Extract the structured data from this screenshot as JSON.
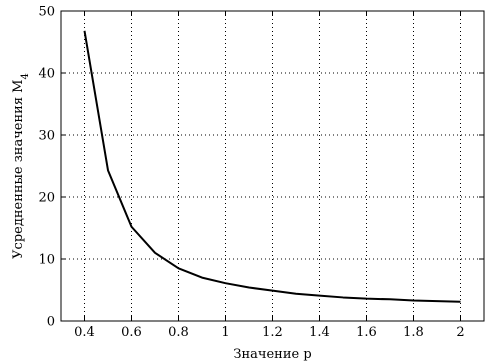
{
  "chart_data": {
    "type": "line",
    "title": "",
    "xlabel": "Значение p",
    "ylabel": "Усредненные значения M",
    "ylabel_subscript": "4",
    "xlim": [
      0.3,
      2.1
    ],
    "ylim": [
      0,
      50
    ],
    "x_ticks": [
      0.4,
      0.6,
      0.8,
      1,
      1.2,
      1.4,
      1.6,
      1.8,
      2
    ],
    "x_tick_labels": [
      "0.4",
      "0.6",
      "0.8",
      "1",
      "1.2",
      "1.4",
      "1.6",
      "1.8",
      "2"
    ],
    "y_ticks": [
      0,
      10,
      20,
      30,
      40,
      50
    ],
    "y_tick_labels": [
      "0",
      "10",
      "20",
      "30",
      "40",
      "50"
    ],
    "grid": true,
    "legend": "none",
    "line_color": "#000000",
    "grid_color": "#000000",
    "series": [
      {
        "x": [
          0.4,
          0.5,
          0.6,
          0.7,
          0.8,
          0.9,
          1.0,
          1.1,
          1.2,
          1.3,
          1.4,
          1.5,
          1.6,
          1.7,
          1.8,
          1.9,
          2.0
        ],
        "y": [
          46.8,
          24.3,
          15.2,
          11.0,
          8.5,
          7.0,
          6.1,
          5.4,
          4.9,
          4.4,
          4.1,
          3.8,
          3.6,
          3.5,
          3.3,
          3.2,
          3.1
        ]
      }
    ]
  }
}
